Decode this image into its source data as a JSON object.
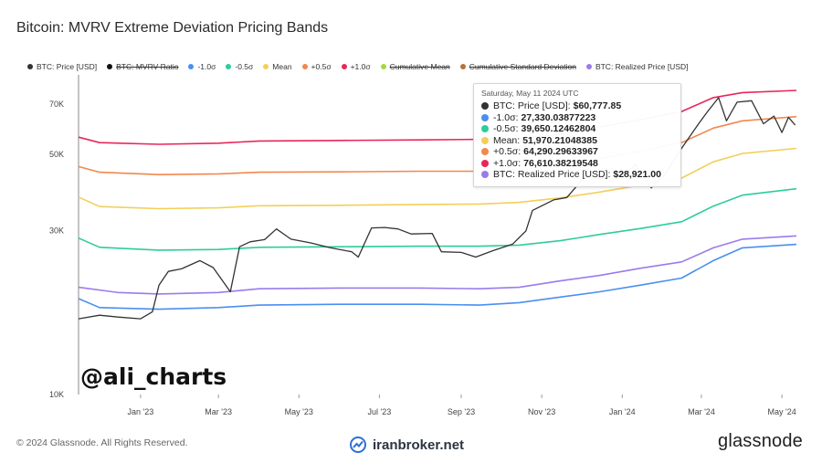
{
  "title": "Bitcoin: MVRV Extreme Deviation Pricing Bands",
  "legend": [
    {
      "label": "BTC: Price [USD]",
      "color": "#333333",
      "struck": false
    },
    {
      "label": "BTC: MVRV Ratio",
      "color": "#111111",
      "struck": true
    },
    {
      "label": "-1.0σ",
      "color": "#4a8ff0",
      "struck": false
    },
    {
      "label": "-0.5σ",
      "color": "#2ecc9e",
      "struck": false
    },
    {
      "label": "Mean",
      "color": "#f3cf5a",
      "struck": false
    },
    {
      "label": "+0.5σ",
      "color": "#f2874f",
      "struck": false
    },
    {
      "label": "+1.0σ",
      "color": "#e8265a",
      "struck": false
    },
    {
      "label": "Cumulative Mean",
      "color": "#a9d63b",
      "struck": true
    },
    {
      "label": "Cumulative Standard Deviation",
      "color": "#b5733a",
      "struck": true
    },
    {
      "label": "BTC: Realized Price [USD]",
      "color": "#9b7bea",
      "struck": false
    }
  ],
  "tooltip": {
    "date": "Saturday, May 11 2024 UTC",
    "rows": [
      {
        "label": "BTC: Price [USD]:",
        "value": "$60,777.85",
        "color": "#333333"
      },
      {
        "label": "-1.0σ:",
        "value": "27,330.03877223",
        "color": "#4a8ff0"
      },
      {
        "label": "-0.5σ:",
        "value": "39,650.12462804",
        "color": "#2ecc9e"
      },
      {
        "label": "Mean:",
        "value": "51,970.21048385",
        "color": "#f3cf5a"
      },
      {
        "label": "+0.5σ:",
        "value": "64,290.29633967",
        "color": "#f2874f"
      },
      {
        "label": "+1.0σ:",
        "value": "76,610.38219548",
        "color": "#e8265a"
      },
      {
        "label": "BTC: Realized Price [USD]:",
        "value": "$28,921.00",
        "color": "#9b7bea"
      }
    ]
  },
  "watermark_handle": "@ali_charts",
  "footer": {
    "copyright": "© 2024 Glassnode. All Rights Reserved.",
    "broker": "iranbroker.net",
    "brand": "glassnode"
  },
  "chart_data": {
    "type": "line",
    "x_ticks": [
      "Jan '23",
      "Mar '23",
      "May '23",
      "Jul '23",
      "Sep '23",
      "Nov '23",
      "Jan '24",
      "Mar '24",
      "May '24"
    ],
    "y_ticks": [
      "10K",
      "30K",
      "50K",
      "70K"
    ],
    "y_scale": "log",
    "ylim": [
      10000,
      85000
    ],
    "x_range": [
      "2022-11-15",
      "2024-05-12"
    ],
    "grid": false,
    "legend_position": "top",
    "series": [
      {
        "name": "+1.0σ",
        "color": "#e8265a",
        "points": [
          [
            "2022-11-15",
            56000
          ],
          [
            "2022-12-01",
            54000
          ],
          [
            "2023-01-15",
            53400
          ],
          [
            "2023-03-01",
            53800
          ],
          [
            "2023-04-01",
            54600
          ],
          [
            "2023-06-01",
            54800
          ],
          [
            "2023-08-01",
            55000
          ],
          [
            "2023-09-15",
            55200
          ],
          [
            "2023-10-15",
            55600
          ],
          [
            "2023-11-15",
            57000
          ],
          [
            "2023-12-15",
            60000
          ],
          [
            "2024-01-15",
            63000
          ],
          [
            "2024-02-15",
            66500
          ],
          [
            "2024-03-10",
            73000
          ],
          [
            "2024-04-01",
            75500
          ],
          [
            "2024-05-12",
            76610
          ]
        ]
      },
      {
        "name": "+0.5σ",
        "color": "#f2874f",
        "points": [
          [
            "2022-11-15",
            46000
          ],
          [
            "2022-12-01",
            44300
          ],
          [
            "2023-01-15",
            43600
          ],
          [
            "2023-03-01",
            43800
          ],
          [
            "2023-04-01",
            44300
          ],
          [
            "2023-06-01",
            44400
          ],
          [
            "2023-08-01",
            44600
          ],
          [
            "2023-09-15",
            44600
          ],
          [
            "2023-10-15",
            45000
          ],
          [
            "2023-11-15",
            46500
          ],
          [
            "2023-12-15",
            48500
          ],
          [
            "2024-01-15",
            51000
          ],
          [
            "2024-02-15",
            54000
          ],
          [
            "2024-03-10",
            59500
          ],
          [
            "2024-04-01",
            62500
          ],
          [
            "2024-05-12",
            64290
          ]
        ]
      },
      {
        "name": "Mean",
        "color": "#f3cf5a",
        "points": [
          [
            "2022-11-15",
            37500
          ],
          [
            "2022-12-01",
            35200
          ],
          [
            "2023-01-15",
            34700
          ],
          [
            "2023-03-01",
            34900
          ],
          [
            "2023-04-01",
            35400
          ],
          [
            "2023-06-01",
            35500
          ],
          [
            "2023-08-01",
            35700
          ],
          [
            "2023-09-15",
            35800
          ],
          [
            "2023-10-15",
            36200
          ],
          [
            "2023-11-15",
            37300
          ],
          [
            "2023-12-15",
            38800
          ],
          [
            "2024-01-15",
            40600
          ],
          [
            "2024-02-15",
            42600
          ],
          [
            "2024-03-10",
            47500
          ],
          [
            "2024-04-01",
            50200
          ],
          [
            "2024-05-12",
            51970
          ]
        ]
      },
      {
        "name": "-0.5σ",
        "color": "#2ecc9e",
        "points": [
          [
            "2022-11-15",
            28500
          ],
          [
            "2022-12-01",
            26800
          ],
          [
            "2023-01-15",
            26300
          ],
          [
            "2023-03-01",
            26400
          ],
          [
            "2023-04-01",
            26800
          ],
          [
            "2023-06-01",
            26900
          ],
          [
            "2023-08-01",
            27000
          ],
          [
            "2023-09-15",
            27000
          ],
          [
            "2023-10-15",
            27200
          ],
          [
            "2023-11-15",
            28000
          ],
          [
            "2023-12-15",
            29200
          ],
          [
            "2024-01-15",
            30400
          ],
          [
            "2024-02-15",
            31800
          ],
          [
            "2024-03-10",
            35300
          ],
          [
            "2024-04-01",
            38000
          ],
          [
            "2024-05-12",
            39650
          ]
        ]
      },
      {
        "name": "BTC: Realized Price [USD]",
        "color": "#9b7bea",
        "points": [
          [
            "2022-11-15",
            20500
          ],
          [
            "2022-12-15",
            19800
          ],
          [
            "2023-01-15",
            19600
          ],
          [
            "2023-03-01",
            19800
          ],
          [
            "2023-04-01",
            20300
          ],
          [
            "2023-06-01",
            20400
          ],
          [
            "2023-08-01",
            20400
          ],
          [
            "2023-09-15",
            20300
          ],
          [
            "2023-10-15",
            20500
          ],
          [
            "2023-11-15",
            21400
          ],
          [
            "2023-12-15",
            22200
          ],
          [
            "2024-01-15",
            23300
          ],
          [
            "2024-02-15",
            24300
          ],
          [
            "2024-03-10",
            26700
          ],
          [
            "2024-04-01",
            28300
          ],
          [
            "2024-05-12",
            28921
          ]
        ]
      },
      {
        "name": "-1.0σ",
        "color": "#4a8ff0",
        "points": [
          [
            "2022-11-15",
            19000
          ],
          [
            "2022-12-01",
            17900
          ],
          [
            "2023-01-15",
            17700
          ],
          [
            "2023-03-01",
            17900
          ],
          [
            "2023-04-01",
            18200
          ],
          [
            "2023-06-01",
            18300
          ],
          [
            "2023-08-01",
            18300
          ],
          [
            "2023-09-15",
            18200
          ],
          [
            "2023-10-15",
            18500
          ],
          [
            "2023-11-15",
            19200
          ],
          [
            "2023-12-15",
            19900
          ],
          [
            "2024-01-15",
            20800
          ],
          [
            "2024-02-15",
            21800
          ],
          [
            "2024-03-10",
            24500
          ],
          [
            "2024-04-01",
            26700
          ],
          [
            "2024-05-12",
            27330
          ]
        ]
      },
      {
        "name": "BTC: Price [USD]",
        "color": "#333333",
        "points": [
          [
            "2022-11-15",
            16600
          ],
          [
            "2022-12-01",
            17000
          ],
          [
            "2022-12-15",
            16800
          ],
          [
            "2023-01-01",
            16600
          ],
          [
            "2023-01-10",
            17400
          ],
          [
            "2023-01-15",
            20800
          ],
          [
            "2023-01-22",
            22800
          ],
          [
            "2023-02-01",
            23200
          ],
          [
            "2023-02-15",
            24500
          ],
          [
            "2023-02-25",
            23400
          ],
          [
            "2023-03-10",
            19900
          ],
          [
            "2023-03-17",
            26900
          ],
          [
            "2023-03-25",
            27800
          ],
          [
            "2023-04-05",
            28200
          ],
          [
            "2023-04-14",
            30300
          ],
          [
            "2023-04-25",
            28300
          ],
          [
            "2023-05-10",
            27600
          ],
          [
            "2023-05-25",
            26700
          ],
          [
            "2023-06-10",
            26000
          ],
          [
            "2023-06-15",
            25100
          ],
          [
            "2023-06-25",
            30500
          ],
          [
            "2023-07-05",
            30600
          ],
          [
            "2023-07-15",
            30300
          ],
          [
            "2023-07-25",
            29300
          ],
          [
            "2023-08-10",
            29400
          ],
          [
            "2023-08-17",
            26000
          ],
          [
            "2023-09-01",
            25900
          ],
          [
            "2023-09-12",
            25100
          ],
          [
            "2023-09-25",
            26200
          ],
          [
            "2023-10-10",
            27400
          ],
          [
            "2023-10-20",
            29900
          ],
          [
            "2023-10-25",
            34300
          ],
          [
            "2023-11-10",
            36800
          ],
          [
            "2023-11-20",
            37400
          ],
          [
            "2023-12-05",
            43600
          ],
          [
            "2023-12-15",
            42400
          ],
          [
            "2024-01-05",
            44100
          ],
          [
            "2024-01-11",
            46600
          ],
          [
            "2024-01-23",
            39900
          ],
          [
            "2024-02-01",
            43000
          ],
          [
            "2024-02-15",
            52000
          ],
          [
            "2024-02-28",
            61400
          ],
          [
            "2024-03-05",
            66000
          ],
          [
            "2024-03-14",
            73000
          ],
          [
            "2024-03-20",
            62500
          ],
          [
            "2024-03-28",
            70800
          ],
          [
            "2024-04-08",
            71500
          ],
          [
            "2024-04-17",
            61300
          ],
          [
            "2024-04-25",
            64500
          ],
          [
            "2024-05-01",
            57800
          ],
          [
            "2024-05-06",
            64000
          ],
          [
            "2024-05-11",
            60778
          ]
        ]
      }
    ]
  }
}
